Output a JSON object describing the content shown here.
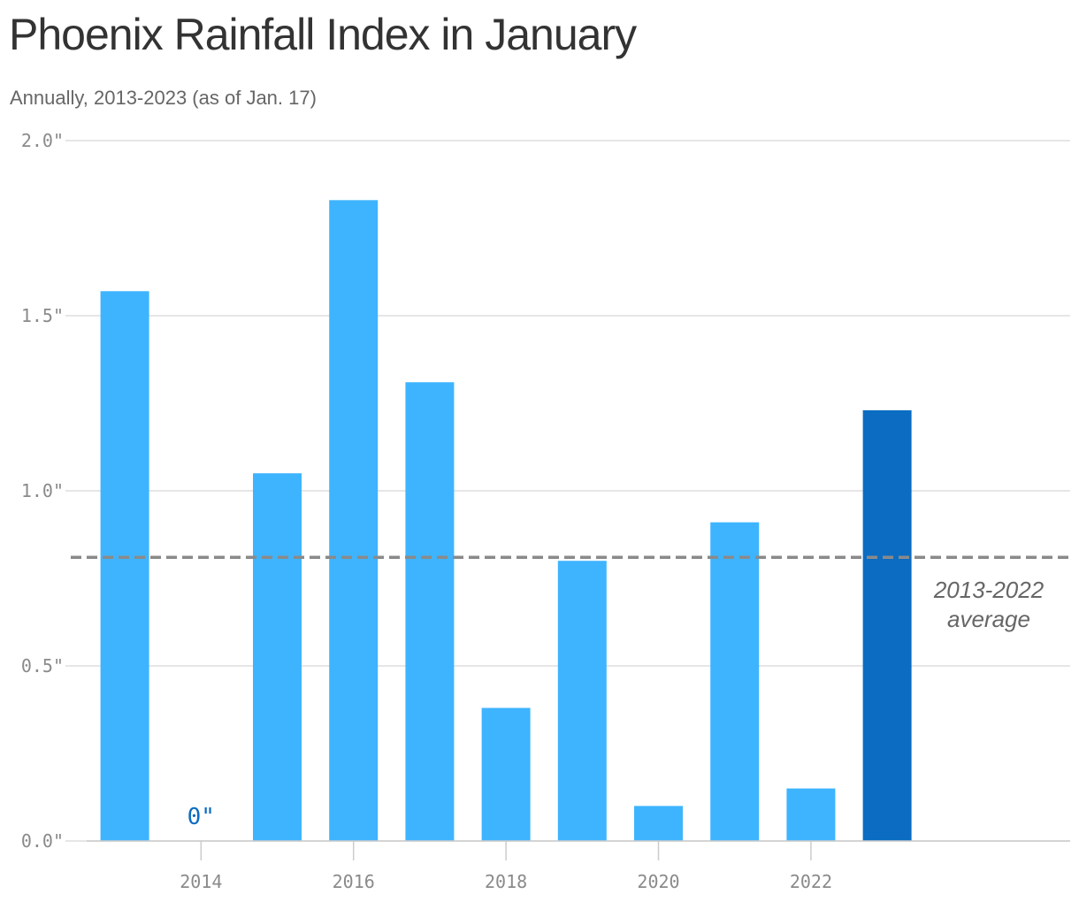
{
  "colors": {
    "bar": "#3EB4FF",
    "bar_highlight": "#0B6CC2",
    "grid": "#dddddd",
    "average_line": "#8a8a8a",
    "zero_label": "#0B6CC2"
  },
  "chart_data": {
    "type": "bar",
    "title": "Phoenix Rainfall Index in January",
    "subtitle": "Annually, 2013-2023 (as of Jan. 17)",
    "x": [
      2013,
      2014,
      2015,
      2016,
      2017,
      2018,
      2019,
      2020,
      2021,
      2022,
      2023
    ],
    "values": [
      1.57,
      0,
      1.05,
      1.83,
      1.31,
      0.38,
      0.8,
      0.1,
      0.91,
      0.15,
      1.23
    ],
    "highlight_year": 2023,
    "ylim": [
      0,
      2
    ],
    "xlim": [
      2012.5,
      2025.4
    ],
    "y_ticks": [
      0,
      0.5,
      1,
      1.5,
      2
    ],
    "y_tick_labels": [
      "0.0\"",
      "0.5\"",
      "1.0\"",
      "1.5\"",
      "2.0\""
    ],
    "x_ticks": [
      2014,
      2016,
      2018,
      2020,
      2022
    ],
    "x_tick_labels": [
      "2014",
      "2016",
      "2018",
      "2020",
      "2022"
    ],
    "zero_annotation": {
      "year": 2014,
      "text": "0\""
    },
    "average": {
      "value": 0.81,
      "label_lines": [
        "2013-2022",
        "average"
      ]
    },
    "grid": true
  }
}
